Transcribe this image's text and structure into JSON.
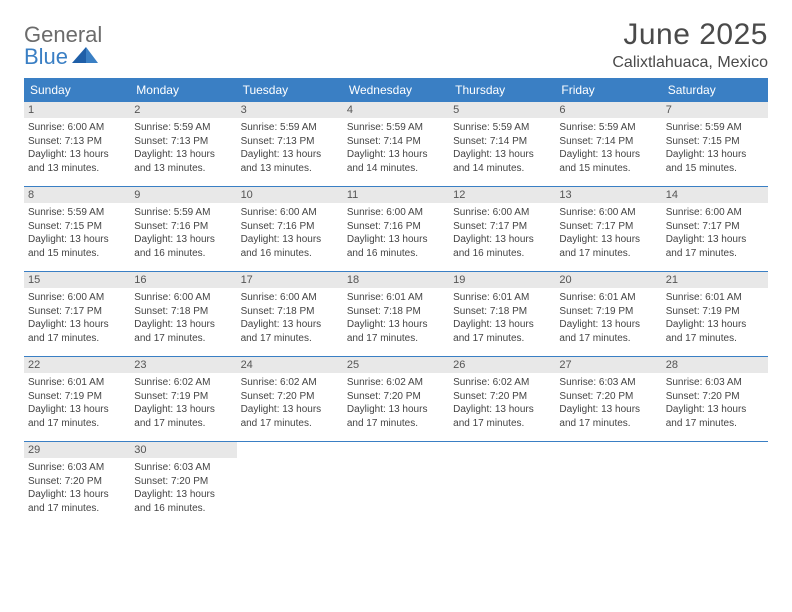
{
  "brand": {
    "general": "General",
    "blue": "Blue",
    "general_color": "#6b6b6b",
    "blue_color": "#3a7fc4"
  },
  "title": {
    "month": "June 2025",
    "location": "Calixtlahuaca, Mexico"
  },
  "colors": {
    "header_bg": "#3a7fc4",
    "header_text": "#ffffff",
    "daynum_bg": "#e8e8e8",
    "week_border": "#3a7fc4"
  },
  "dow": [
    "Sunday",
    "Monday",
    "Tuesday",
    "Wednesday",
    "Thursday",
    "Friday",
    "Saturday"
  ],
  "days": [
    {
      "n": "1",
      "sr": "6:00 AM",
      "ss": "7:13 PM",
      "dl": "13 hours and 13 minutes."
    },
    {
      "n": "2",
      "sr": "5:59 AM",
      "ss": "7:13 PM",
      "dl": "13 hours and 13 minutes."
    },
    {
      "n": "3",
      "sr": "5:59 AM",
      "ss": "7:13 PM",
      "dl": "13 hours and 13 minutes."
    },
    {
      "n": "4",
      "sr": "5:59 AM",
      "ss": "7:14 PM",
      "dl": "13 hours and 14 minutes."
    },
    {
      "n": "5",
      "sr": "5:59 AM",
      "ss": "7:14 PM",
      "dl": "13 hours and 14 minutes."
    },
    {
      "n": "6",
      "sr": "5:59 AM",
      "ss": "7:14 PM",
      "dl": "13 hours and 15 minutes."
    },
    {
      "n": "7",
      "sr": "5:59 AM",
      "ss": "7:15 PM",
      "dl": "13 hours and 15 minutes."
    },
    {
      "n": "8",
      "sr": "5:59 AM",
      "ss": "7:15 PM",
      "dl": "13 hours and 15 minutes."
    },
    {
      "n": "9",
      "sr": "5:59 AM",
      "ss": "7:16 PM",
      "dl": "13 hours and 16 minutes."
    },
    {
      "n": "10",
      "sr": "6:00 AM",
      "ss": "7:16 PM",
      "dl": "13 hours and 16 minutes."
    },
    {
      "n": "11",
      "sr": "6:00 AM",
      "ss": "7:16 PM",
      "dl": "13 hours and 16 minutes."
    },
    {
      "n": "12",
      "sr": "6:00 AM",
      "ss": "7:17 PM",
      "dl": "13 hours and 16 minutes."
    },
    {
      "n": "13",
      "sr": "6:00 AM",
      "ss": "7:17 PM",
      "dl": "13 hours and 17 minutes."
    },
    {
      "n": "14",
      "sr": "6:00 AM",
      "ss": "7:17 PM",
      "dl": "13 hours and 17 minutes."
    },
    {
      "n": "15",
      "sr": "6:00 AM",
      "ss": "7:17 PM",
      "dl": "13 hours and 17 minutes."
    },
    {
      "n": "16",
      "sr": "6:00 AM",
      "ss": "7:18 PM",
      "dl": "13 hours and 17 minutes."
    },
    {
      "n": "17",
      "sr": "6:00 AM",
      "ss": "7:18 PM",
      "dl": "13 hours and 17 minutes."
    },
    {
      "n": "18",
      "sr": "6:01 AM",
      "ss": "7:18 PM",
      "dl": "13 hours and 17 minutes."
    },
    {
      "n": "19",
      "sr": "6:01 AM",
      "ss": "7:18 PM",
      "dl": "13 hours and 17 minutes."
    },
    {
      "n": "20",
      "sr": "6:01 AM",
      "ss": "7:19 PM",
      "dl": "13 hours and 17 minutes."
    },
    {
      "n": "21",
      "sr": "6:01 AM",
      "ss": "7:19 PM",
      "dl": "13 hours and 17 minutes."
    },
    {
      "n": "22",
      "sr": "6:01 AM",
      "ss": "7:19 PM",
      "dl": "13 hours and 17 minutes."
    },
    {
      "n": "23",
      "sr": "6:02 AM",
      "ss": "7:19 PM",
      "dl": "13 hours and 17 minutes."
    },
    {
      "n": "24",
      "sr": "6:02 AM",
      "ss": "7:20 PM",
      "dl": "13 hours and 17 minutes."
    },
    {
      "n": "25",
      "sr": "6:02 AM",
      "ss": "7:20 PM",
      "dl": "13 hours and 17 minutes."
    },
    {
      "n": "26",
      "sr": "6:02 AM",
      "ss": "7:20 PM",
      "dl": "13 hours and 17 minutes."
    },
    {
      "n": "27",
      "sr": "6:03 AM",
      "ss": "7:20 PM",
      "dl": "13 hours and 17 minutes."
    },
    {
      "n": "28",
      "sr": "6:03 AM",
      "ss": "7:20 PM",
      "dl": "13 hours and 17 minutes."
    },
    {
      "n": "29",
      "sr": "6:03 AM",
      "ss": "7:20 PM",
      "dl": "13 hours and 17 minutes."
    },
    {
      "n": "30",
      "sr": "6:03 AM",
      "ss": "7:20 PM",
      "dl": "13 hours and 16 minutes."
    }
  ],
  "labels": {
    "sunrise": "Sunrise: ",
    "sunset": "Sunset: ",
    "daylight": "Daylight: "
  }
}
